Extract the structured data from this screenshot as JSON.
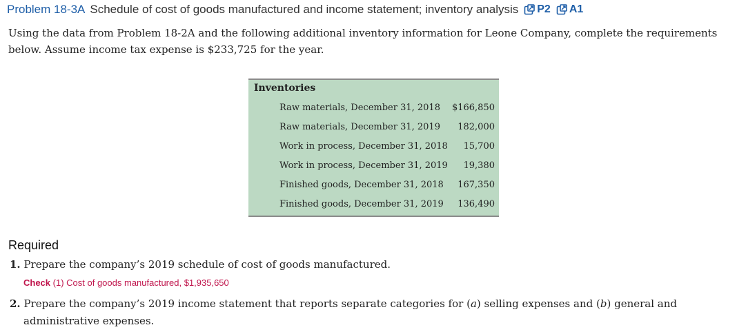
{
  "problem": {
    "number": "Problem 18-3A",
    "title": "Schedule of cost of goods manufactured and income statement; inventory analysis",
    "refs": [
      {
        "icon": "external-link-icon",
        "label": "P2"
      },
      {
        "icon": "external-link-icon",
        "label": "A1"
      }
    ]
  },
  "intro": "Using the data from Problem 18-2A and the following additional inventory information for Leone Company, complete the requirements below. Assume income tax expense is $233,725 for the year.",
  "inventory": {
    "heading": "Inventories",
    "rows": [
      {
        "label": "Raw materials, December 31, 2018",
        "value": "$166,850"
      },
      {
        "label": "Raw materials, December 31, 2019",
        "value": "182,000"
      },
      {
        "label": "Work in process, December 31, 2018",
        "value": "15,700"
      },
      {
        "label": "Work in process, December 31, 2019",
        "value": "19,380"
      },
      {
        "label": "Finished goods, December 31, 2018",
        "value": "167,350"
      },
      {
        "label": "Finished goods, December 31, 2019",
        "value": "136,490"
      }
    ]
  },
  "required": {
    "heading": "Required",
    "item1": {
      "num": "1.",
      "text": "Prepare the company’s 2019 schedule of cost of goods manufactured."
    },
    "check": {
      "label": "Check",
      "text": "(1) Cost of goods manufactured, $1,935,650"
    },
    "item2": {
      "num": "2.",
      "text_a": "Prepare the company’s 2019 income statement that reports separate categories for (",
      "a": "a",
      "text_b": ") selling expenses and (",
      "b": "b",
      "text_c": ") general and",
      "text_d": "administrative expenses."
    }
  },
  "colors": {
    "link_blue": "#1f5fa8",
    "check_pink": "#c0164d",
    "table_green": "#bcd9c3"
  }
}
